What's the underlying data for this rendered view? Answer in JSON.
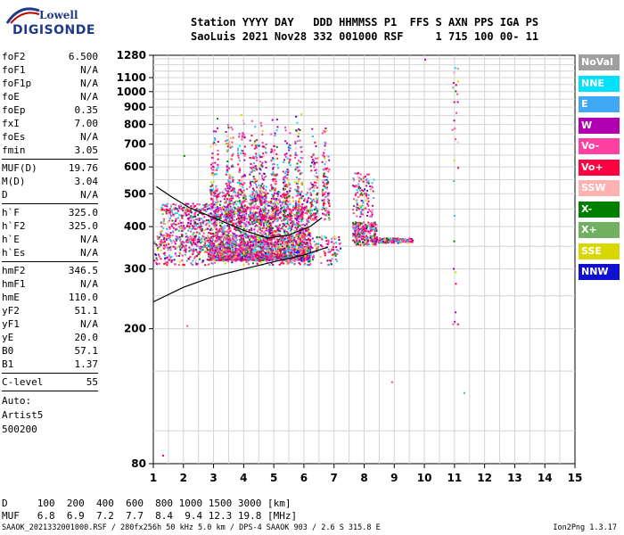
{
  "logo": {
    "line1": "Lowell",
    "line2": "DIGISONDE"
  },
  "header": {
    "line1": "Station YYYY DAY   DDD HHMMSS P1  FFS S AXN PPS IGA PS",
    "line2": "SaoLuis 2021 Nov28 332 001000 RSF     1 715 100 00- 11"
  },
  "params": [
    [
      {
        "k": "foF2",
        "v": "6.500"
      },
      {
        "k": "foF1",
        "v": "N/A"
      },
      {
        "k": "foF1p",
        "v": "N/A"
      },
      {
        "k": "foE",
        "v": "N/A"
      },
      {
        "k": "foEp",
        "v": "0.35"
      },
      {
        "k": "fxI",
        "v": "7.00"
      },
      {
        "k": "foEs",
        "v": "N/A"
      },
      {
        "k": "fmin",
        "v": "3.05"
      }
    ],
    [
      {
        "k": "MUF(D)",
        "v": "19.76"
      },
      {
        "k": "M(D)",
        "v": "3.04"
      },
      {
        "k": "D",
        "v": "N/A"
      }
    ],
    [
      {
        "k": "h`F",
        "v": "325.0"
      },
      {
        "k": "h`F2",
        "v": "325.0"
      },
      {
        "k": "h`E",
        "v": "N/A"
      },
      {
        "k": "h`Es",
        "v": "N/A"
      }
    ],
    [
      {
        "k": "hmF2",
        "v": "346.5"
      },
      {
        "k": "hmF1",
        "v": "N/A"
      },
      {
        "k": "hmE",
        "v": "110.0"
      },
      {
        "k": "yF2",
        "v": "51.1"
      },
      {
        "k": "yF1",
        "v": "N/A"
      },
      {
        "k": "yE",
        "v": "20.0"
      },
      {
        "k": "B0",
        "v": "57.1"
      },
      {
        "k": "B1",
        "v": "1.37"
      }
    ],
    [
      {
        "k": "C-level",
        "v": "55"
      }
    ]
  ],
  "auto": {
    "line1": "Auto:",
    "line2": "Artist5",
    "line3": "500200"
  },
  "legend": [
    {
      "label": "NoVal",
      "color": "#a0a0a0"
    },
    {
      "label": "NNE",
      "color": "#00e0ff"
    },
    {
      "label": "E",
      "color": "#3fa9f5"
    },
    {
      "label": "W",
      "color": "#b000b0"
    },
    {
      "label": "Vo-",
      "color": "#ff40a0"
    },
    {
      "label": "Vo+",
      "color": "#ff0040"
    },
    {
      "label": "SSW",
      "color": "#ffb0b0"
    },
    {
      "label": "X-",
      "color": "#008000"
    },
    {
      "label": "X+",
      "color": "#70b060"
    },
    {
      "label": "SSE",
      "color": "#d8d800"
    },
    {
      "label": "NNW",
      "color": "#1010d0"
    }
  ],
  "chart_data": {
    "type": "scatter",
    "x_ticks": [
      "1",
      "2",
      "3",
      "4",
      "5",
      "6",
      "7",
      "8",
      "9",
      "10",
      "11",
      "12",
      "13",
      "14",
      "15"
    ],
    "y_ticks": [
      "80",
      "200",
      "300",
      "400",
      "500",
      "600",
      "700",
      "800",
      "900",
      "1000",
      "1100",
      "1280"
    ],
    "xlim": [
      1,
      15
    ],
    "ylim": [
      80,
      1280
    ],
    "y_scale": "log"
  },
  "muf_table": {
    "d_line": "D     100  200  400  600  800 1000 1500 3000 [km]",
    "muf_line": "MUF   6.8  6.9  7.2  7.7  8.4  9.4 12.3 19.8 [MHz]"
  },
  "footer": {
    "file_line": "SAAOK_2021332001000.RSF / 280fx256h 50 kHz 5.0 km / DPS-4 SAAOK 903 / 2.6 S 315.8 E",
    "version": "Ion2Png 1.3.17"
  }
}
